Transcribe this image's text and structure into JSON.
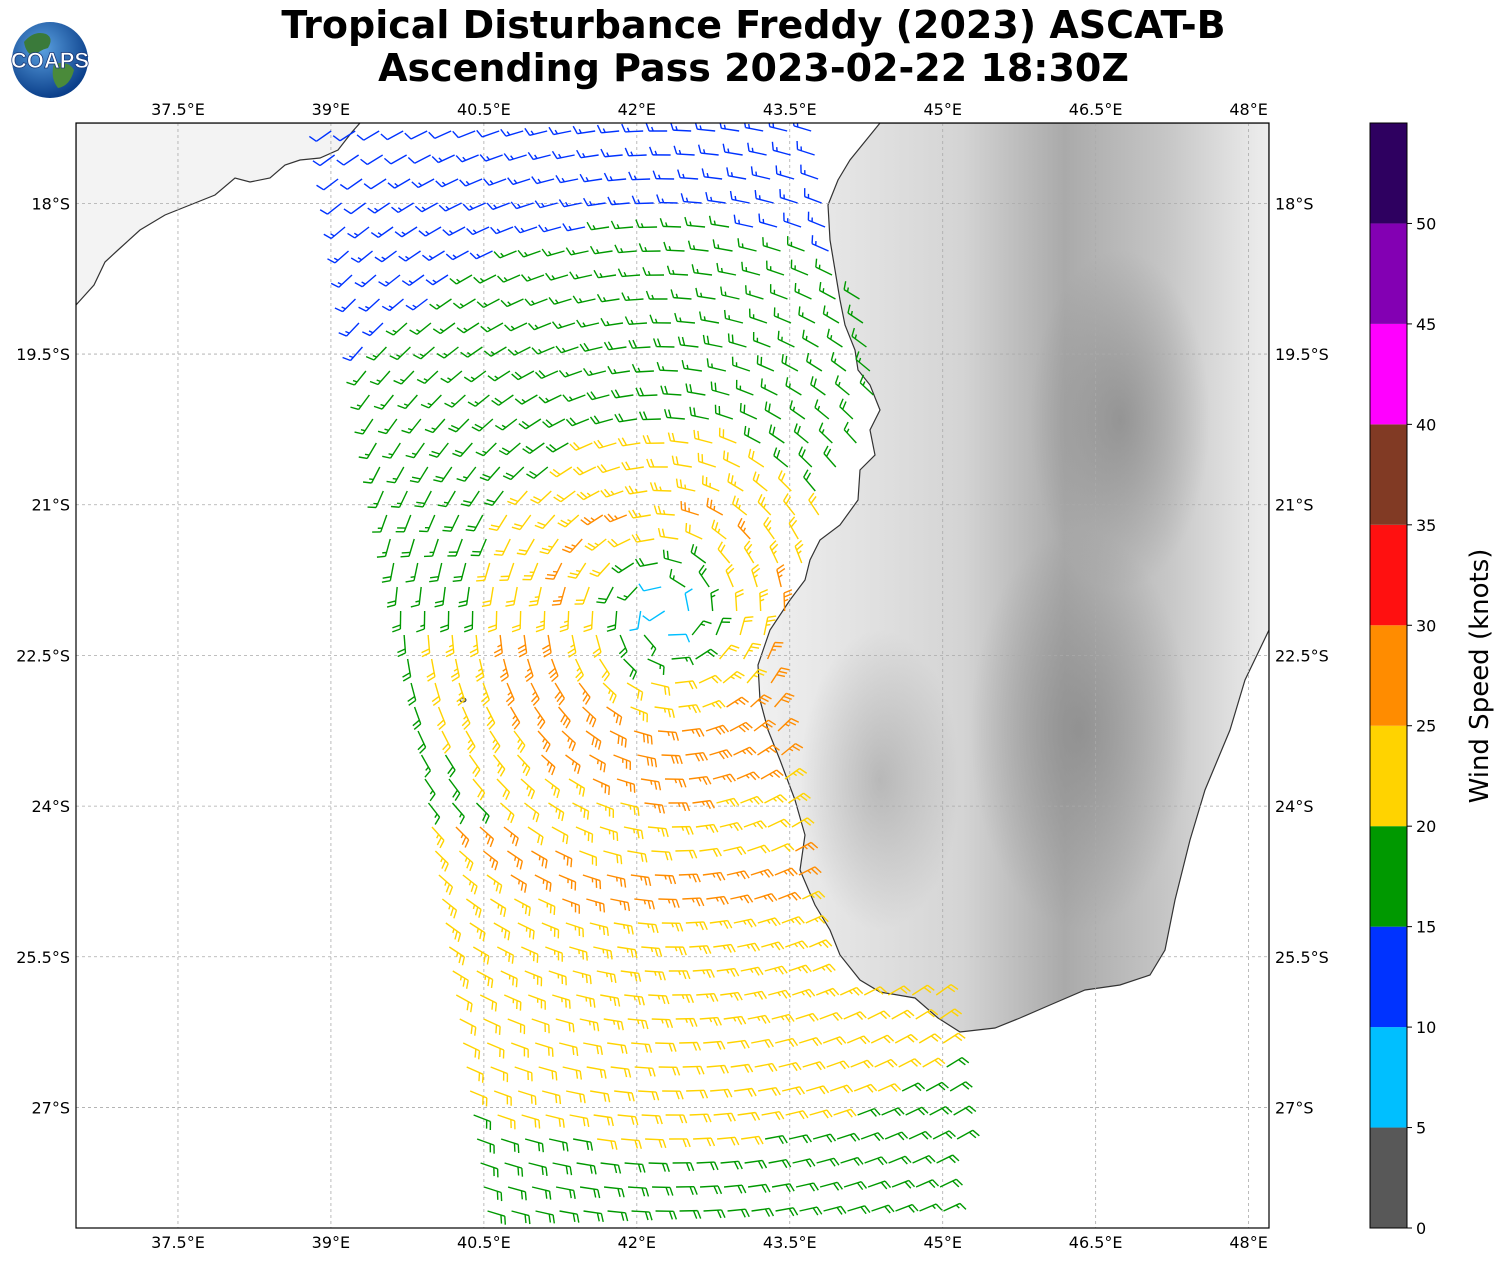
{
  "title": {
    "line1": "Tropical Disturbance Freddy (2023) ASCAT-B",
    "line2": "Ascending Pass 2023-02-22 18:30Z"
  },
  "logo": {
    "text": "COAPS",
    "icon": "globe-logo"
  },
  "map": {
    "lon_range": [
      36.5,
      48.2
    ],
    "lat_range": [
      -28.2,
      -17.2
    ],
    "lon_ticks": [
      "37.5°E",
      "39°E",
      "40.5°E",
      "42°E",
      "43.5°E",
      "45°E",
      "46.5°E",
      "48°E"
    ],
    "lat_ticks": [
      "18°S",
      "19.5°S",
      "21°S",
      "22.5°S",
      "24°S",
      "25.5°S",
      "27°S"
    ],
    "gridlines": true,
    "land_color": "#f2f2f2",
    "background": "#ffffff",
    "storm_center": {
      "lon": 42.3,
      "lat": -22.1
    }
  },
  "colorbar": {
    "label": "Wind Speed (knots)",
    "ticks": [
      "0",
      "5",
      "10",
      "15",
      "20",
      "25",
      "30",
      "35",
      "40",
      "45",
      "50"
    ],
    "bins": [
      {
        "min": 0,
        "max": 5,
        "color": "#585858"
      },
      {
        "min": 5,
        "max": 10,
        "color": "#00bfff"
      },
      {
        "min": 10,
        "max": 15,
        "color": "#0033ff"
      },
      {
        "min": 15,
        "max": 20,
        "color": "#009900"
      },
      {
        "min": 20,
        "max": 25,
        "color": "#ffd300"
      },
      {
        "min": 25,
        "max": 30,
        "color": "#ff8c00"
      },
      {
        "min": 30,
        "max": 35,
        "color": "#ff1010"
      },
      {
        "min": 35,
        "max": 40,
        "color": "#813a24"
      },
      {
        "min": 40,
        "max": 45,
        "color": "#ff00ff"
      },
      {
        "min": 45,
        "max": 50,
        "color": "#8300b3"
      },
      {
        "min": 50,
        "max": 55,
        "color": "#2e0060"
      }
    ]
  }
}
